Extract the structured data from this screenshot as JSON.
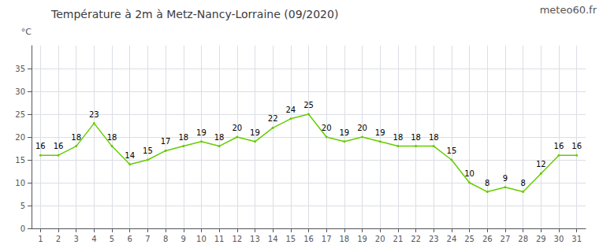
{
  "chart_data": {
    "type": "line",
    "title": "Température à 2m à Metz-Nancy-Lorraine (09/2020)",
    "ylabel": "°C",
    "annotations": [
      "meteo60.fr"
    ],
    "x": [
      1,
      2,
      3,
      4,
      5,
      6,
      7,
      8,
      9,
      10,
      11,
      12,
      13,
      14,
      15,
      16,
      17,
      18,
      19,
      20,
      21,
      22,
      23,
      24,
      25,
      26,
      27,
      28,
      29,
      30,
      31
    ],
    "values": [
      16,
      16,
      18,
      23,
      18,
      14,
      15,
      17,
      18,
      19,
      18,
      20,
      19,
      22,
      24,
      25,
      20,
      19,
      20,
      19,
      18,
      18,
      18,
      15,
      10,
      8,
      9,
      8,
      12,
      16,
      16
    ],
    "color": "#66cc00",
    "xlim": [
      0.5,
      31.5
    ],
    "xticks": [
      1,
      2,
      3,
      4,
      5,
      6,
      7,
      8,
      9,
      10,
      11,
      12,
      13,
      14,
      15,
      16,
      17,
      18,
      19,
      20,
      21,
      22,
      23,
      24,
      25,
      26,
      27,
      28,
      29,
      30,
      31
    ],
    "ylim": [
      0,
      40
    ],
    "yticks": [
      0,
      5,
      10,
      15,
      20,
      25,
      30,
      35
    ],
    "grid": true,
    "data_labels": true
  }
}
